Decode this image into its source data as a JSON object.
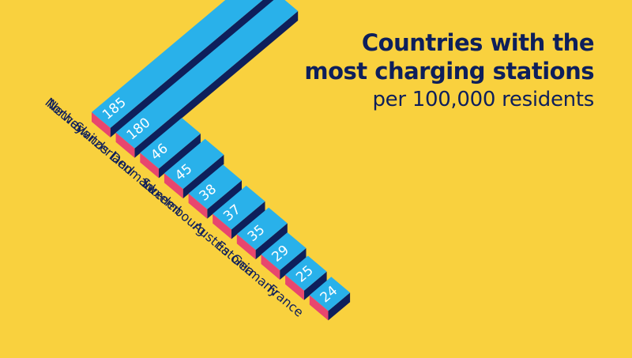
{
  "title_lines": [
    "Countries with the",
    "most charging stations"
  ],
  "subtitle": "per 100,000 residents",
  "colors": {
    "background": "#F9D13E",
    "bar_top": "#29B1EA",
    "bar_front": "#E8466E",
    "bar_side": "#0E1F5B",
    "label_text": "#0E1F5B",
    "value_text": "#FFFFFF"
  },
  "chart_data": {
    "type": "bar",
    "categories": [
      "Norway",
      "Netherlands",
      "Switzerland",
      "Denmark",
      "Sweden",
      "Luxembourg",
      "Austria",
      "Estonia",
      "Germany",
      "France"
    ],
    "values": [
      185,
      180,
      46,
      45,
      38,
      37,
      35,
      29,
      25,
      24
    ],
    "title": "Countries with the most charging stations",
    "subtitle": "per 100,000 residents",
    "orientation": "isometric-3d",
    "data_labels": true
  }
}
